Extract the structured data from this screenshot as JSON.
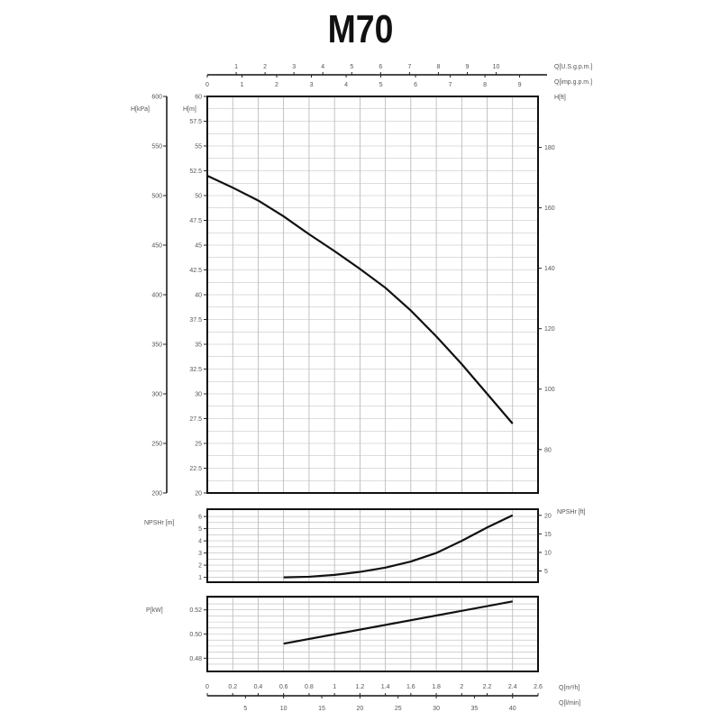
{
  "chart_data": [
    {
      "type": "line",
      "title": "M70",
      "xlabel": "Q[m³/h]",
      "x2label": "Q[l/min]",
      "x_top1label": "Q[U.S.g.p.m.]",
      "x_top2label": "Q[imp.g.p.m.]",
      "ylabel": "H[m]",
      "y_kpa_label": "H[kPa]",
      "y_ft_label": "H[ft]",
      "xlim": [
        0,
        2.6
      ],
      "ylim": [
        20,
        60
      ],
      "grid": true,
      "x_ticks": [
        "0",
        "0.2",
        "0.4",
        "0.6",
        "0.8",
        "1",
        "1.2",
        "1.4",
        "1.6",
        "1.8",
        "2",
        "2.2",
        "2.4",
        "2.6"
      ],
      "lmin_ticks": [
        "5",
        "10",
        "15",
        "20",
        "25",
        "30",
        "35",
        "40"
      ],
      "usgpm_ticks": [
        "1",
        "2",
        "3",
        "4",
        "5",
        "6",
        "7",
        "8",
        "9",
        "10"
      ],
      "impgpm_ticks": [
        "0",
        "1",
        "2",
        "3",
        "4",
        "5",
        "6",
        "7",
        "8",
        "9"
      ],
      "y_ticks": [
        "20",
        "22.5",
        "25",
        "27.5",
        "30",
        "32.5",
        "35",
        "37.5",
        "40",
        "42.5",
        "45",
        "47.5",
        "50",
        "52.5",
        "55",
        "57.5",
        "60"
      ],
      "kpa_ticks": [
        "200",
        "250",
        "300",
        "350",
        "400",
        "450",
        "500",
        "550",
        "600"
      ],
      "ft_ticks": [
        "80",
        "100",
        "120",
        "140",
        "160",
        "180"
      ],
      "series": [
        {
          "x": [
            0,
            0.2,
            0.4,
            0.6,
            0.8,
            1.0,
            1.2,
            1.4,
            1.6,
            1.8,
            2.0,
            2.2,
            2.4
          ],
          "y": [
            52,
            50.8,
            49.5,
            47.9,
            46.1,
            44.4,
            42.6,
            40.7,
            38.4,
            35.8,
            33.0,
            30.0,
            27.0
          ]
        }
      ]
    },
    {
      "type": "line",
      "ylabel": "NPSHr [m]",
      "y2label": "NPSHr [ft]",
      "ylim": [
        0.6,
        6.6
      ],
      "y_ticks": [
        "1",
        "2",
        "3",
        "4",
        "5",
        "6"
      ],
      "ft_ticks": [
        "5",
        "10",
        "15",
        "20"
      ],
      "series": [
        {
          "x": [
            0.6,
            0.8,
            1.0,
            1.2,
            1.4,
            1.6,
            1.8,
            2.0,
            2.2,
            2.4
          ],
          "y": [
            1.0,
            1.05,
            1.2,
            1.45,
            1.8,
            2.3,
            3.0,
            4.0,
            5.1,
            6.1
          ]
        }
      ]
    },
    {
      "type": "line",
      "ylabel": "P[kW]",
      "ylim": [
        0.469,
        0.531
      ],
      "y_ticks": [
        "0.48",
        "0.50",
        "0.52"
      ],
      "series": [
        {
          "x": [
            0.6,
            2.4
          ],
          "y": [
            0.492,
            0.527
          ]
        }
      ]
    }
  ]
}
